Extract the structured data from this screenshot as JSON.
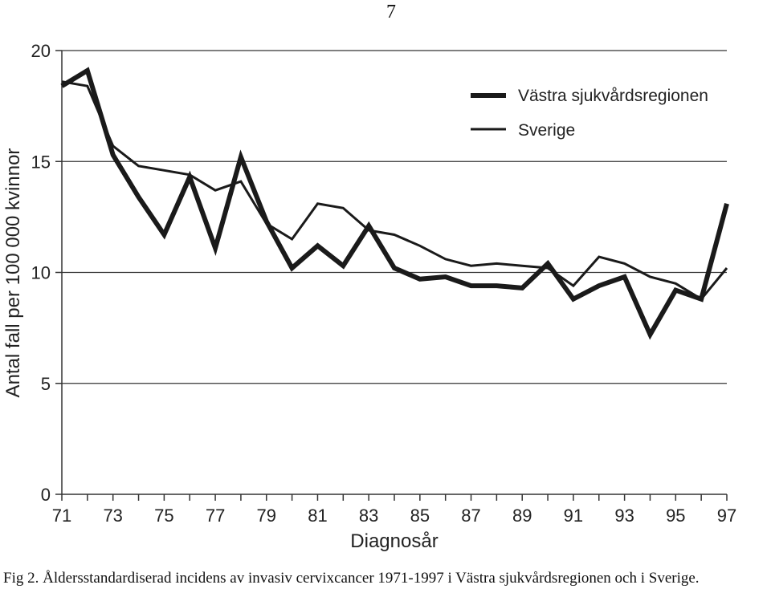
{
  "page_number": "7",
  "caption": "Fig 2. Åldersstandardiserad incidens av invasiv cervixcancer 1971-1997 i Västra sjukvårdsregionen och i Sverige.",
  "chart_data": {
    "type": "line",
    "xlabel": "Diagnosår",
    "ylabel": "Antal fall per 100 000 kvinnor",
    "xlim": [
      71,
      97
    ],
    "ylim": [
      0,
      20
    ],
    "x": [
      71,
      72,
      73,
      74,
      75,
      76,
      77,
      78,
      79,
      80,
      81,
      82,
      83,
      84,
      85,
      86,
      87,
      88,
      89,
      90,
      91,
      92,
      93,
      94,
      95,
      96,
      97
    ],
    "x_tick_labels": [
      "71",
      "73",
      "75",
      "77",
      "79",
      "81",
      "83",
      "85",
      "87",
      "89",
      "91",
      "93",
      "95",
      "97"
    ],
    "y_tick_labels": [
      "0",
      "5",
      "10",
      "15",
      "20"
    ],
    "y_ticks": [
      0,
      5,
      10,
      15,
      20
    ],
    "grid": "horizontal at 5, 10, 15, 20",
    "legend_position": "top-right",
    "series": [
      {
        "name": "Västra sjukvårdsregionen",
        "style": "thick",
        "color": "#1a1a1a",
        "values": [
          18.4,
          19.1,
          15.3,
          13.4,
          11.7,
          14.3,
          11.1,
          15.2,
          12.3,
          10.2,
          11.2,
          10.3,
          12.1,
          10.2,
          9.7,
          9.8,
          9.4,
          9.4,
          9.3,
          10.4,
          8.8,
          9.4,
          9.8,
          7.2,
          9.2,
          8.8,
          13.1
        ]
      },
      {
        "name": "Sverige",
        "style": "thin",
        "color": "#1a1a1a",
        "values": [
          18.6,
          18.4,
          15.7,
          14.8,
          14.6,
          14.4,
          13.7,
          14.1,
          12.2,
          11.5,
          13.1,
          12.9,
          11.9,
          11.7,
          11.2,
          10.6,
          10.3,
          10.4,
          10.3,
          10.2,
          9.4,
          10.7,
          10.4,
          9.8,
          9.5,
          8.8,
          10.2
        ]
      }
    ]
  }
}
